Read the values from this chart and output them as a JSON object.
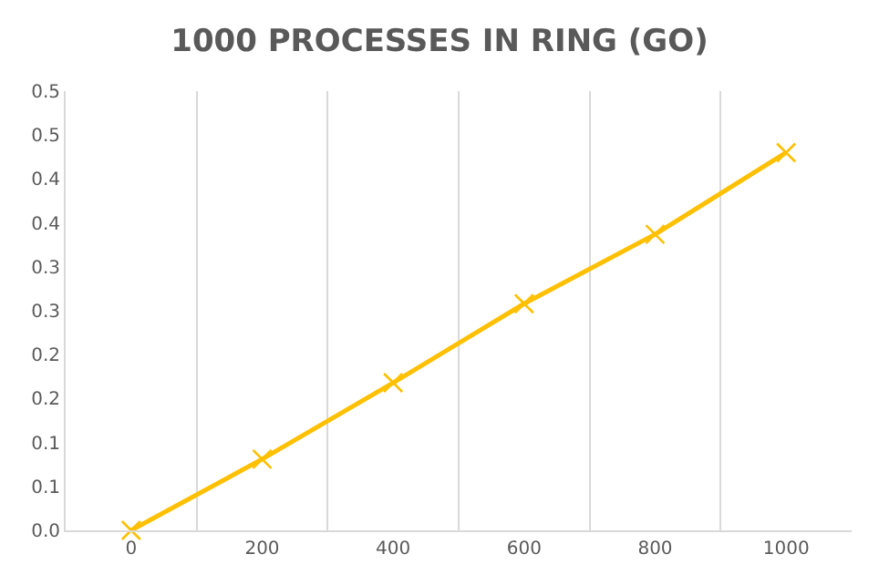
{
  "chart_data": {
    "type": "line",
    "title": "1000 PROCESSES IN RING (GO)",
    "categories": [
      "0",
      "200",
      "400",
      "600",
      "800",
      "1000"
    ],
    "series": [
      {
        "color": "#ffc000",
        "values": [
          0.0,
          0.081,
          0.168,
          0.258,
          0.337,
          0.43
        ]
      }
    ],
    "ylim": [
      0,
      0.5
    ],
    "yticks": [
      {
        "value": 0,
        "label": "0.0"
      },
      {
        "value": 0.05,
        "label": "0.1"
      },
      {
        "value": 0.1,
        "label": "0.1"
      },
      {
        "value": 0.15,
        "label": "0.2"
      },
      {
        "value": 0.2,
        "label": "0.2"
      },
      {
        "value": 0.25,
        "label": "0.3"
      },
      {
        "value": 0.3,
        "label": "0.3"
      },
      {
        "value": 0.35,
        "label": "0.4"
      },
      {
        "value": 0.4,
        "label": "0.4"
      },
      {
        "value": 0.45,
        "label": "0.5"
      },
      {
        "value": 0.5,
        "label": "0.5"
      }
    ],
    "grid": "x",
    "legend": false,
    "marker": "cross",
    "line_style": "solid"
  }
}
